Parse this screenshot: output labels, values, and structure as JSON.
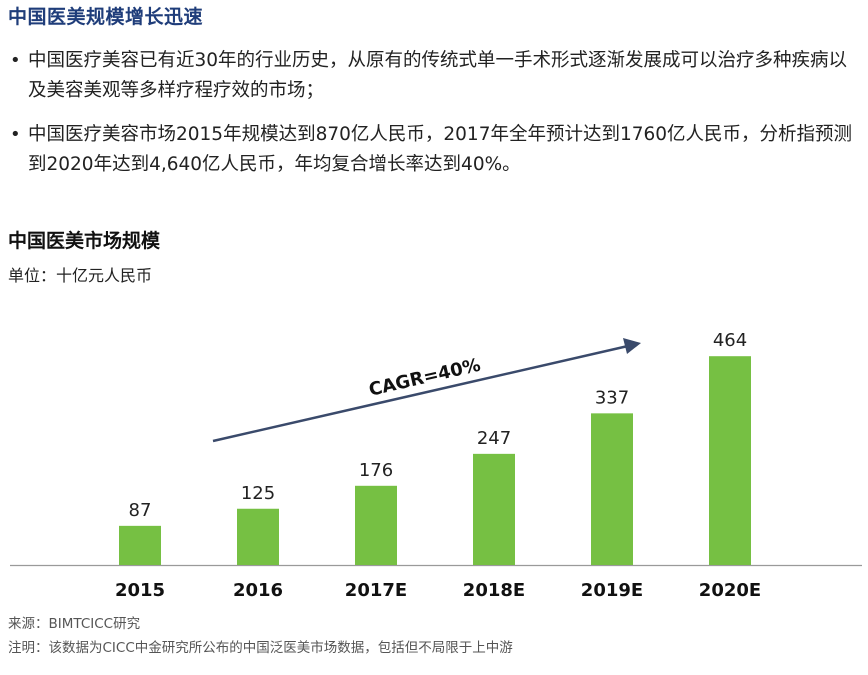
{
  "header": {
    "title": "中国医美规模增长迅速"
  },
  "bullets": [
    "中国医疗美容已有近30年的行业历史，从原有的传统式单一手术形式逐渐发展成可以治疗多种疾病以及美容美观等多样疗程疗效的市场；",
    "中国医疗美容市场2015年规模达到870亿人民币，2017年全年预计达到1760亿人民币，分析指预测到2020年达到4,640亿人民币，年均复合增长率达到40%。"
  ],
  "chart_title": "中国医美市场规模",
  "chart_unit": "单位：十亿元人民币",
  "chart_data": {
    "type": "bar",
    "categories": [
      "2015",
      "2016",
      "2017E",
      "2018E",
      "2019E",
      "2020E"
    ],
    "values": [
      87,
      125,
      176,
      247,
      337,
      464
    ],
    "ylim": [
      0,
      500
    ],
    "bar_color": "#76c043",
    "annotation": "CAGR=40%",
    "xlabel": "",
    "ylabel": ""
  },
  "footnotes": {
    "source": "来源：BIMTCICC研究",
    "note": "注明：该数据为CICC中金研究所公布的中国泛医美市场数据，包括但不局限于上中游"
  }
}
